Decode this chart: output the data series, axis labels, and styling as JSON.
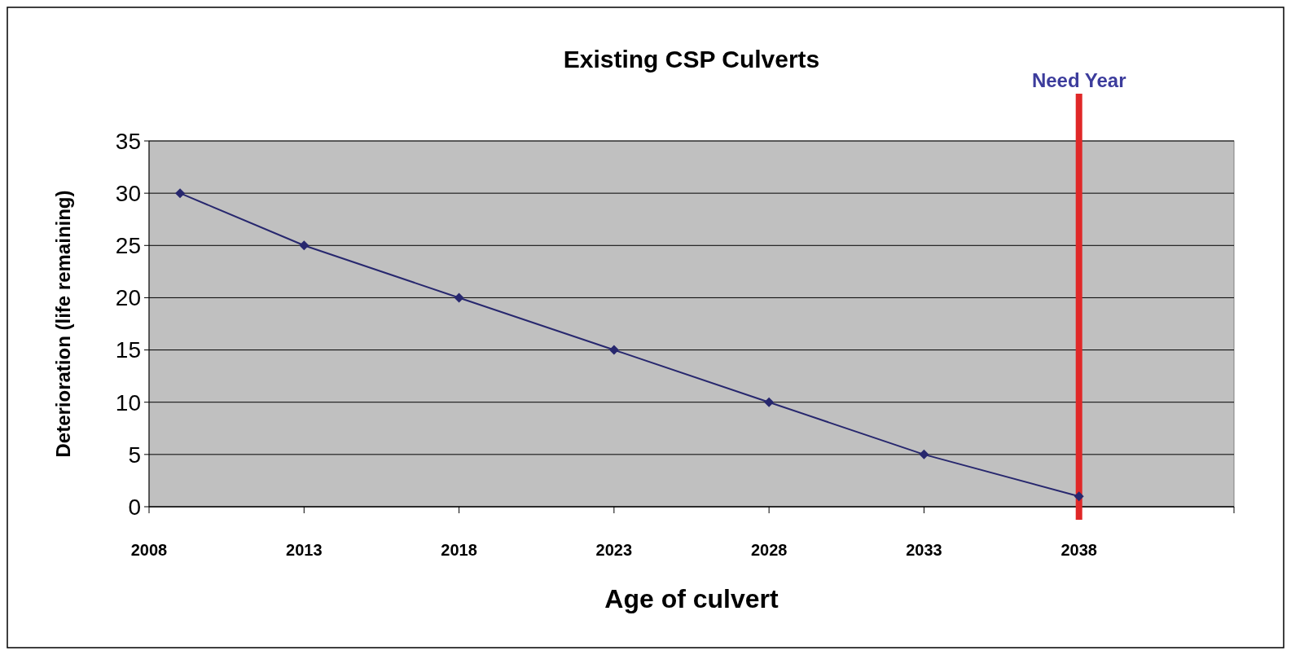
{
  "chart_data": {
    "type": "line",
    "title": "Existing CSP Culverts",
    "xlabel": "Age of culvert",
    "ylabel": "Deterioration (life remaining)",
    "x": [
      2009,
      2013,
      2018,
      2023,
      2028,
      2033,
      2038
    ],
    "series": [
      {
        "color": "#27276e",
        "values": [
          30,
          25,
          20,
          15,
          10,
          5,
          1
        ]
      }
    ],
    "xlim": [
      2008,
      2043
    ],
    "xticks": [
      2008,
      2013,
      2018,
      2023,
      2028,
      2033,
      2038,
      {
        "value": 2043,
        "label": null
      }
    ],
    "ylim": [
      0,
      35
    ],
    "yticks": [
      0,
      5,
      10,
      15,
      20,
      25,
      30,
      35
    ],
    "grid": "y",
    "marker": "diamond",
    "line_style": "solid",
    "ref_lines": [
      {
        "axis": "x",
        "value": 2038,
        "label": "Need Year",
        "color": "#e02828"
      }
    ]
  }
}
